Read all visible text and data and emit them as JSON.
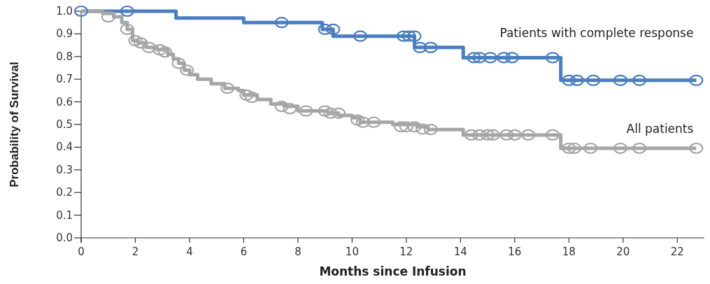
{
  "chart_data": {
    "type": "step",
    "xlabel": "Months since Infusion",
    "ylabel": "Probability of Survival",
    "xlim": [
      0,
      23
    ],
    "ylim": [
      0,
      1
    ],
    "xticks": [
      0,
      2,
      4,
      6,
      8,
      10,
      12,
      14,
      16,
      18,
      20,
      22
    ],
    "yticks": [
      {
        "value": 0,
        "label": "0.0"
      },
      {
        "value": 0.1,
        "label": "0.1"
      },
      {
        "value": 0.2,
        "label": "0.2"
      },
      {
        "value": 0.3,
        "label": "0.3"
      },
      {
        "value": 0.4,
        "label": "0.4"
      },
      {
        "value": 0.5,
        "label": "0.5"
      },
      {
        "value": 0.6,
        "label": "0.6"
      },
      {
        "value": 0.7,
        "label": "0.7"
      },
      {
        "value": 0.8,
        "label": "0.8"
      },
      {
        "value": 0.9,
        "label": "0.9"
      },
      {
        "value": 1,
        "label": "1.0"
      }
    ],
    "grid": false,
    "line_style": "solid",
    "series": [
      {
        "name": "Patients with complete response",
        "marker": "none",
        "color": "#4a7ebf",
        "x": [
          0,
          3.5,
          6.0,
          8.9,
          9.3,
          12.3,
          14.1,
          17.7,
          22.7
        ],
        "values": [
          1.0,
          0.97,
          0.95,
          0.92,
          0.89,
          0.84,
          0.795,
          0.695,
          0.695
        ]
      },
      {
        "name": "All patients",
        "marker": "none",
        "color": "#a6a6a6",
        "x": [
          0,
          0.8,
          1.2,
          1.5,
          1.7,
          1.9,
          2.1,
          2.4,
          2.8,
          3.2,
          3.4,
          3.6,
          3.8,
          4.0,
          4.3,
          4.8,
          5.3,
          5.8,
          6.0,
          6.5,
          7.0,
          7.5,
          8.0,
          9.1,
          9.5,
          10.0,
          10.3,
          11.5,
          12.4,
          12.8,
          14.1,
          17.7,
          22.7
        ],
        "values": [
          1.0,
          0.99,
          0.975,
          0.95,
          0.92,
          0.87,
          0.86,
          0.84,
          0.83,
          0.81,
          0.79,
          0.77,
          0.74,
          0.72,
          0.7,
          0.68,
          0.66,
          0.65,
          0.63,
          0.61,
          0.59,
          0.58,
          0.56,
          0.55,
          0.54,
          0.53,
          0.51,
          0.5,
          0.49,
          0.478,
          0.454,
          0.395,
          0.395
        ]
      },
      {
        "type": "scatter",
        "marker": "circle",
        "color": "#4a7ebf",
        "x": [
          0,
          1.7,
          7.4,
          9.0,
          9.3,
          10.3,
          11.9,
          12.1,
          12.3,
          12.5,
          12.9,
          14.5,
          14.7,
          15.1,
          15.6,
          15.9,
          17.4,
          18.0,
          18.3,
          18.9,
          19.9,
          20.6,
          22.7
        ],
        "values": [
          1.0,
          1.0,
          0.95,
          0.92,
          0.92,
          0.89,
          0.89,
          0.89,
          0.89,
          0.84,
          0.84,
          0.795,
          0.795,
          0.795,
          0.795,
          0.795,
          0.795,
          0.695,
          0.695,
          0.695,
          0.695,
          0.695,
          0.695
        ]
      },
      {
        "type": "scatter",
        "marker": "circle",
        "color": "#a6a6a6",
        "x": [
          1.0,
          1.7,
          2.0,
          2.2,
          2.5,
          2.9,
          3.1,
          3.6,
          3.9,
          5.4,
          6.1,
          6.3,
          7.4,
          7.7,
          8.3,
          9.0,
          9.2,
          9.5,
          10.2,
          10.4,
          10.8,
          11.8,
          12.0,
          12.3,
          12.6,
          12.9,
          14.4,
          14.7,
          15.0,
          15.2,
          15.7,
          16.0,
          16.5,
          17.4,
          18.0,
          18.2,
          18.8,
          19.9,
          20.6,
          22.7
        ],
        "values": [
          0.975,
          0.92,
          0.87,
          0.86,
          0.84,
          0.83,
          0.82,
          0.77,
          0.74,
          0.66,
          0.63,
          0.62,
          0.58,
          0.57,
          0.56,
          0.56,
          0.55,
          0.55,
          0.52,
          0.51,
          0.51,
          0.49,
          0.49,
          0.49,
          0.48,
          0.478,
          0.454,
          0.454,
          0.454,
          0.454,
          0.454,
          0.454,
          0.454,
          0.454,
          0.395,
          0.395,
          0.395,
          0.395,
          0.395,
          0.395
        ]
      }
    ]
  }
}
